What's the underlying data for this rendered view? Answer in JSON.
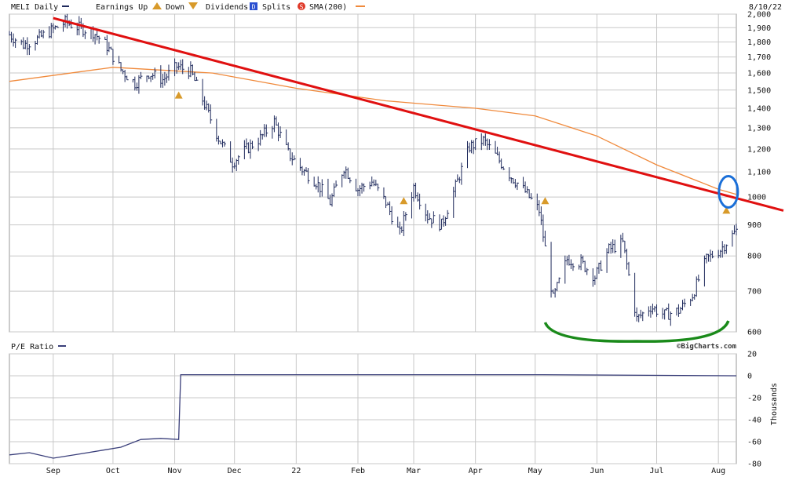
{
  "header": {
    "symbol_label": "MELI Daily",
    "earnings_label": "Earnings Up",
    "down_label": "Down",
    "dividends_label": "Dividends",
    "dividends_marker": "D",
    "splits_label": "Splits",
    "splits_marker": "S",
    "sma_label": "SMA(200)",
    "date": "8/10/22"
  },
  "watermark": "©BigCharts.com",
  "pe_panel": {
    "title": "P/E Ratio",
    "ylabel": "Thousands"
  },
  "colors": {
    "price_bars": "#1f2a5c",
    "sma": "#f08a3c",
    "trendline": "#e01010",
    "earnings": "#d89a2a",
    "annotation_circle": "#1a6fd8",
    "annotation_curve": "#1a8a1a",
    "grid": "#c8c8c8",
    "pe_line": "#3a3f7a",
    "dividends": "#2a4fd0",
    "splits": "#e03a2a"
  },
  "chart_data": [
    {
      "type": "line",
      "title": "MELI Daily",
      "x_months": [
        "Sep",
        "Oct",
        "Nov",
        "Dec",
        "22",
        "Feb",
        "Mar",
        "Apr",
        "May",
        "Jun",
        "Jul",
        "Aug"
      ],
      "x_range": [
        "2021-08-10",
        "2022-08-10"
      ],
      "y_scale": "log",
      "ylim": [
        600,
        2000
      ],
      "y_ticks": [
        600,
        700,
        800,
        900,
        1000,
        "1,100",
        "1,200",
        "1,300",
        "1,400",
        "1,500",
        "1,600",
        "1,700",
        "1,800",
        "1,900",
        "2,000"
      ],
      "grid": true,
      "series": [
        {
          "name": "MELI Daily",
          "style": "ohlc-bars",
          "x": [
            "2021-08-10",
            "2021-08-17",
            "2021-08-24",
            "2021-08-31",
            "2021-09-07",
            "2021-09-14",
            "2021-09-21",
            "2021-09-28",
            "2021-10-05",
            "2021-10-12",
            "2021-10-19",
            "2021-10-26",
            "2021-11-02",
            "2021-11-09",
            "2021-11-16",
            "2021-11-23",
            "2021-11-30",
            "2021-12-07",
            "2021-12-14",
            "2021-12-21",
            "2021-12-28",
            "2022-01-04",
            "2022-01-11",
            "2022-01-18",
            "2022-01-25",
            "2022-02-01",
            "2022-02-08",
            "2022-02-15",
            "2022-02-22",
            "2022-03-01",
            "2022-03-08",
            "2022-03-15",
            "2022-03-22",
            "2022-03-29",
            "2022-04-05",
            "2022-04-12",
            "2022-04-19",
            "2022-04-26",
            "2022-05-03",
            "2022-05-10",
            "2022-05-17",
            "2022-05-24",
            "2022-05-31",
            "2022-06-07",
            "2022-06-14",
            "2022-06-21",
            "2022-06-28",
            "2022-07-05",
            "2022-07-12",
            "2022-07-19",
            "2022-07-26",
            "2022-08-02",
            "2022-08-10"
          ],
          "values": [
            1850,
            1780,
            1820,
            1880,
            1940,
            1900,
            1870,
            1770,
            1620,
            1540,
            1600,
            1560,
            1640,
            1610,
            1420,
            1250,
            1140,
            1200,
            1250,
            1330,
            1180,
            1110,
            1060,
            980,
            1120,
            1030,
            1060,
            980,
            870,
            1040,
            930,
            900,
            1040,
            1210,
            1240,
            1160,
            1080,
            1020,
            950,
            680,
            790,
            780,
            740,
            820,
            840,
            630,
            660,
            640,
            650,
            690,
            790,
            820,
            880
          ]
        },
        {
          "name": "SMA(200)",
          "style": "line",
          "x": [
            "2021-08-10",
            "2021-10-01",
            "2021-11-20",
            "2022-01-01",
            "2022-02-15",
            "2022-04-01",
            "2022-05-01",
            "2022-06-01",
            "2022-07-01",
            "2022-08-01",
            "2022-08-10"
          ],
          "values": [
            1550,
            1635,
            1600,
            1510,
            1440,
            1400,
            1360,
            1260,
            1130,
            1030,
            1010
          ]
        },
        {
          "name": "Trendline",
          "style": "annotation-line",
          "x": [
            "2021-09-01",
            "2022-08-20"
          ],
          "values": [
            1970,
            950
          ]
        }
      ],
      "earnings_markers": [
        {
          "x": "2021-11-03",
          "value": 1470,
          "direction": "up"
        },
        {
          "x": "2022-02-24",
          "value": 985,
          "direction": "up"
        },
        {
          "x": "2022-05-06",
          "value": 985,
          "direction": "up"
        },
        {
          "x": "2022-08-05",
          "value": 950,
          "direction": "up"
        }
      ],
      "annotations": [
        {
          "type": "circle",
          "x": "2022-08-06",
          "value": 1020
        },
        {
          "type": "curve",
          "x": [
            "2022-05-06",
            "2022-08-06"
          ],
          "value": 600
        }
      ]
    },
    {
      "type": "line",
      "title": "P/E Ratio",
      "ylabel": "Thousands",
      "x_months": [
        "Sep",
        "Oct",
        "Nov",
        "Dec",
        "22",
        "Feb",
        "Mar",
        "Apr",
        "May",
        "Jun",
        "Jul",
        "Aug"
      ],
      "ylim": [
        -80,
        20
      ],
      "y_ticks": [
        20,
        0,
        -20,
        -40,
        -60,
        -80
      ],
      "grid": true,
      "series": [
        {
          "name": "P/E Ratio",
          "x": [
            "2021-08-10",
            "2021-08-20",
            "2021-09-01",
            "2021-09-15",
            "2021-09-25",
            "2021-10-05",
            "2021-10-15",
            "2021-10-25",
            "2021-11-03",
            "2021-11-04",
            "2022-05-05",
            "2022-08-10"
          ],
          "values": [
            -72,
            -70,
            -75,
            -71,
            -68,
            -65,
            -58,
            -57,
            -58,
            1,
            1,
            0
          ]
        }
      ]
    }
  ]
}
